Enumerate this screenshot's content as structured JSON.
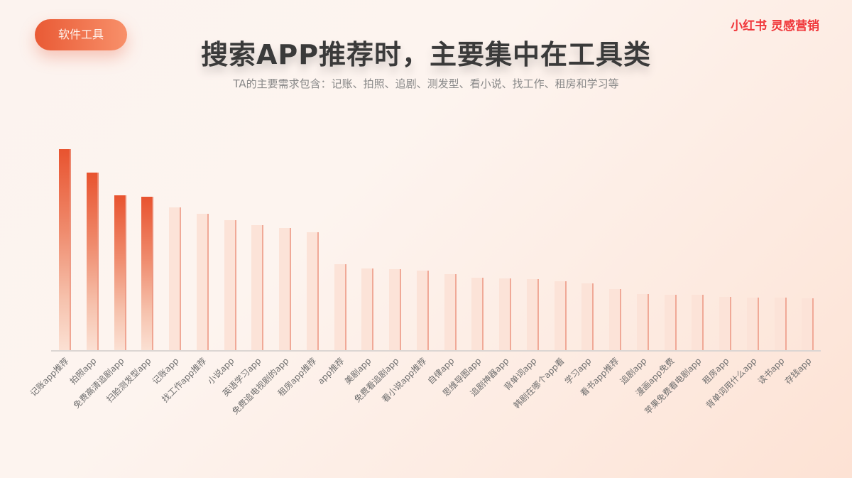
{
  "tag": {
    "label": "软件工具"
  },
  "brand": {
    "label": "小红书 灵感营销"
  },
  "header": {
    "title": "搜索APP推荐时，主要集中在工具类",
    "subtitle": "TA的主要需求包含：记账、拍照、追剧、测发型、看小说、找工作、租房和学习等"
  },
  "colors": {
    "accent": "#e8532f",
    "accent_light": "#fce3d8",
    "brand": "#f0363a",
    "title": "#3a3a3a",
    "subtitle": "#888888"
  },
  "chart_data": {
    "type": "bar",
    "title": "搜索APP推荐时，主要集中在工具类",
    "subtitle": "TA的主要需求包含：记账、拍照、追剧、测发型、看小说、找工作、租房和学习等",
    "xlabel": "",
    "ylabel": "",
    "grid": false,
    "legend": null,
    "highlighted_top_n": 4,
    "categories": [
      "记账app推荐",
      "拍照app",
      "免费高清追剧app",
      "扫脸测发型app",
      "记账app",
      "找工作app推荐",
      "小说app",
      "英语学习app",
      "免费追电视剧的app",
      "租房app推荐",
      "app推荐",
      "美剧app",
      "免费看追剧app",
      "看小说app推荐",
      "自律app",
      "思维导图app",
      "追剧神器app",
      "背单词app",
      "韩剧在哪个app看",
      "学习app",
      "看书app推荐",
      "追剧app",
      "漫画app免费",
      "苹果免费看电剧app",
      "租房app",
      "背单词用什么app",
      "读书app",
      "存钱app"
    ],
    "values": [
      283,
      250,
      218,
      216,
      201,
      192,
      183,
      176,
      172,
      166,
      121,
      115,
      114,
      112,
      107,
      102,
      101,
      100,
      97,
      94,
      86,
      79,
      78,
      78,
      75,
      74,
      74,
      73
    ],
    "ylim": [
      0,
      300
    ],
    "value_note": "relative search volume (unlabeled axis; values estimated in pixel units)"
  }
}
